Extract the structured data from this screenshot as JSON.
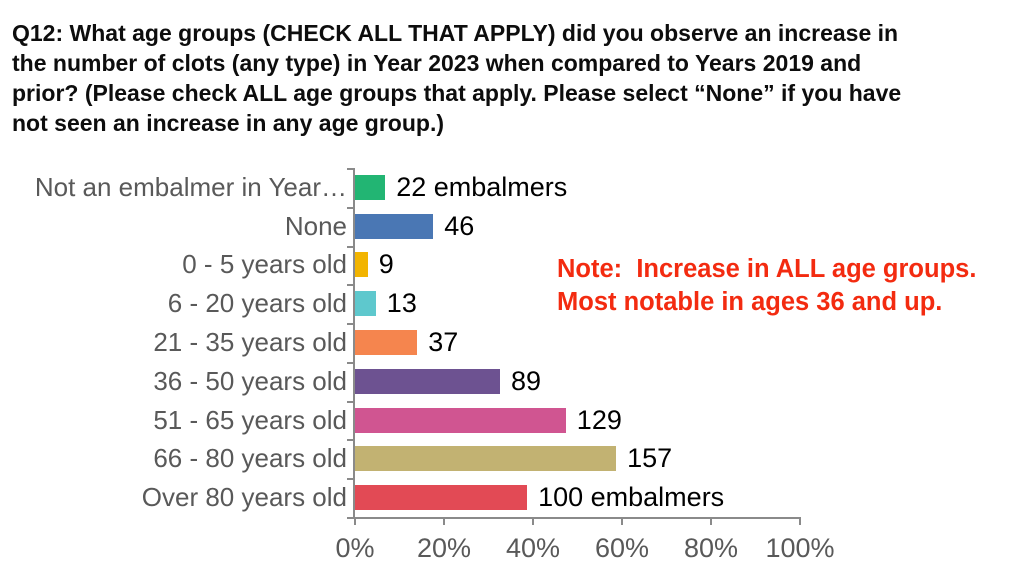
{
  "figure": {
    "title_lines": [
      "Q12: What age groups (CHECK ALL THAT APPLY) did you observe an increase in",
      "the number of clots (any type) in Year 2023 when compared to Years 2019 and",
      "prior? (Please check ALL age groups that apply. Please select “None” if you have",
      "not seen an increase in any age group.)"
    ],
    "note_lines": [
      "Note:  Increase in ALL age groups.",
      "Most notable in ages 36 and up."
    ],
    "note_color": "#f32b10",
    "category_label_color": "#595959",
    "value_label_color": "#000000",
    "axis_color": "#8a8a8a"
  },
  "chart_data": {
    "type": "bar",
    "orientation": "horizontal",
    "title": "Q12: What age groups (CHECK ALL THAT APPLY) did you observe an increase in the number of clots (any type) in Year 2023 when compared to Years 2019 and prior? (Please check ALL age groups that apply. Please select “None” if you have not seen an increase in any age group.)",
    "categories": [
      "Not an embalmer in Year…",
      "None",
      "0 - 5 years old",
      "6 - 20 years old",
      "21 - 35 years old",
      "36 - 50 years old",
      "51 - 65 years old",
      "66 - 80 years old",
      "Over 80 years old"
    ],
    "values": [
      22,
      46,
      9,
      13,
      37,
      89,
      129,
      157,
      100
    ],
    "value_labels": [
      "22 embalmers",
      "46",
      "9",
      "13",
      "37",
      "89",
      "129",
      "157",
      "100 embalmers"
    ],
    "percent_of_axis": [
      7.0,
      17.8,
      3.1,
      4.9,
      14.2,
      32.8,
      47.6,
      58.9,
      38.9
    ],
    "bar_colors": [
      "#22b573",
      "#4a77b4",
      "#f2b400",
      "#5ec8cd",
      "#f5854e",
      "#6d5291",
      "#d05591",
      "#c2b272",
      "#e24a55"
    ],
    "x_ticks": [
      "0%",
      "20%",
      "40%",
      "60%",
      "80%",
      "100%"
    ],
    "xlim": [
      0,
      100
    ],
    "grid": false,
    "legend": false,
    "annotation": "Note: Increase in ALL age groups. Most notable in ages 36 and up."
  }
}
